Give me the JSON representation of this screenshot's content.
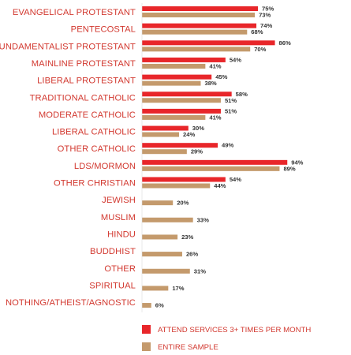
{
  "chart_data": {
    "type": "bar",
    "orientation": "horizontal",
    "categories": [
      "EVANGELICAL PROTESTANT",
      "PENTECOSTAL",
      "FUNDAMENTALIST PROTESTANT",
      "MAINLINE PROTESTANT",
      "LIBERAL PROTESTANT",
      "TRADITIONAL CATHOLIC",
      "MODERATE CATHOLIC",
      "LIBERAL CATHOLIC",
      "OTHER CATHOLIC",
      "LDS/MORMON",
      "OTHER CHRISTIAN",
      "JEWISH",
      "MUSLIM",
      "HINDU",
      "BUDDHIST",
      "OTHER",
      "SPIRITUAL",
      "NOTHING/ATHEIST/AGNOSTIC"
    ],
    "series": [
      {
        "name": "ATTEND SERVICES 3+ TIMES PER MONTH",
        "color": "#e8262a",
        "values": [
          75,
          74,
          86,
          54,
          45,
          58,
          51,
          30,
          49,
          94,
          54,
          null,
          null,
          null,
          null,
          null,
          null,
          null
        ],
        "labels": [
          "75%",
          "74%",
          "86%",
          "54%",
          "45%",
          "58%",
          "51%",
          "30%",
          "49%",
          "94%",
          "54%",
          "",
          "",
          "",
          "",
          "",
          "",
          ""
        ]
      },
      {
        "name": "ENTIRE SAMPLE",
        "color": "#c49a6c",
        "values": [
          73,
          68,
          70,
          41,
          38,
          51,
          41,
          24,
          29,
          89,
          44,
          20,
          33,
          23,
          26,
          31,
          17,
          6
        ],
        "labels": [
          "73%",
          "68%",
          "70%",
          "41%",
          "38%",
          "51%",
          "41%",
          "24%",
          "29%",
          "89%",
          "44%",
          "20%",
          "33%",
          "23%",
          "26%",
          "31%",
          "17%",
          "6%"
        ]
      }
    ],
    "xlim": [
      0,
      100
    ],
    "grid": false,
    "legend": "bottom"
  }
}
